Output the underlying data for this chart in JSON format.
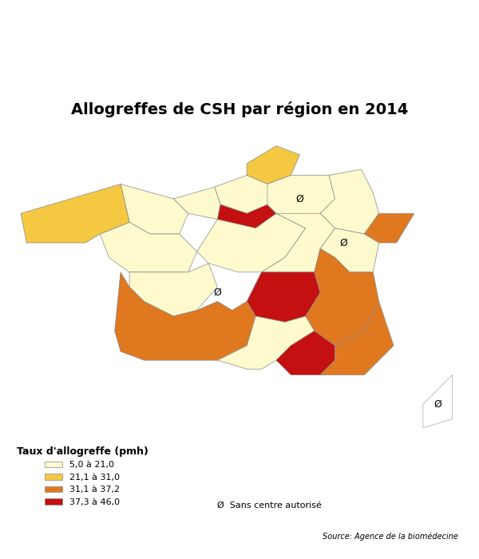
{
  "title": "Allogreffes de CSH par région en 2014",
  "title_fontsize": 14,
  "title_fontweight": "bold",
  "source_text": "Source: Agence de la biomédecine",
  "legend_title": "Taux d'allogreffe (pmh)",
  "legend_labels": [
    "5,0 à 21,0",
    "21,1 à 31,0",
    "31,1 à 37,2",
    "37,3 à 46,0"
  ],
  "legend_colors": [
    "#FFFACD",
    "#F5C842",
    "#E07820",
    "#C41010"
  ],
  "no_center_label": "Sans centre autorisé",
  "no_center_symbol": "Ø",
  "region_colors": {
    "Alsace": "#E07820",
    "Aquitaine": "#E07820",
    "Auvergne": "#C41010",
    "Basse-Normandie": "#FFFACD",
    "Bourgogne": "#FFFACD",
    "Bretagne": "#F5C842",
    "Centre": "#FFFACD",
    "Champagne-Ardenne": "#FFFACD",
    "Corse": "white",
    "Franche-Comté": "#FFFACD",
    "Haute-Normandie": "#FFFACD",
    "Île-de-France": "#C41010",
    "Languedoc-Roussillon": "#C41010",
    "Limousin": "white",
    "Lorraine": "#FFFACD",
    "Midi-Pyrénées": "#FFFACD",
    "Nord-Pas-de-Calais": "#F5C842",
    "Pays de la Loire": "#FFFACD",
    "Picardie": "#FFFACD",
    "Poitou-Charentes": "#FFFACD",
    "Provence-Alpes-Côte d'Azur": "#E07820",
    "Rhône-Alpes": "#E07820"
  },
  "background_color": "white",
  "edge_color": "#888888",
  "edge_width": 0.5
}
